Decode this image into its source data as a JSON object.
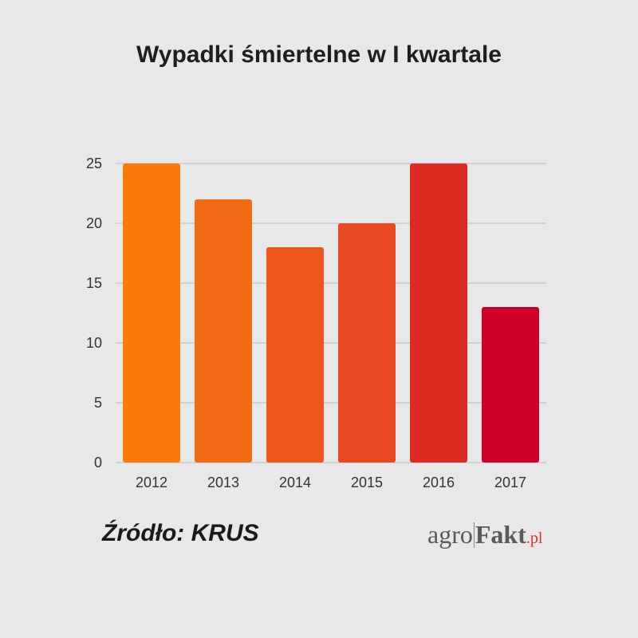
{
  "title": "Wypadki śmiertelne w I kwartale",
  "source": "Źródło: KRUS",
  "logo": {
    "part1": "agro",
    "part2": "Fakt",
    "part3": ".pl"
  },
  "colors": {
    "background": "#e8e8e8",
    "grid": "#bdbdbd",
    "tick_text": "#333333",
    "logo_accent": "#d9322b"
  },
  "chart_data": {
    "type": "bar",
    "categories": [
      "2012",
      "2013",
      "2014",
      "2015",
      "2016",
      "2017"
    ],
    "values": [
      25,
      22,
      18,
      20,
      25,
      13
    ],
    "bar_colors": [
      "#f97c0b",
      "#f26a16",
      "#ec571d",
      "#e74821",
      "#dd2b24",
      "#cf0027"
    ],
    "title": "Wypadki śmiertelne w I kwartale",
    "xlabel": "",
    "ylabel": "",
    "ylim": [
      0,
      25
    ],
    "yticks": [
      0,
      5,
      10,
      15,
      20,
      25
    ],
    "grid": true
  }
}
